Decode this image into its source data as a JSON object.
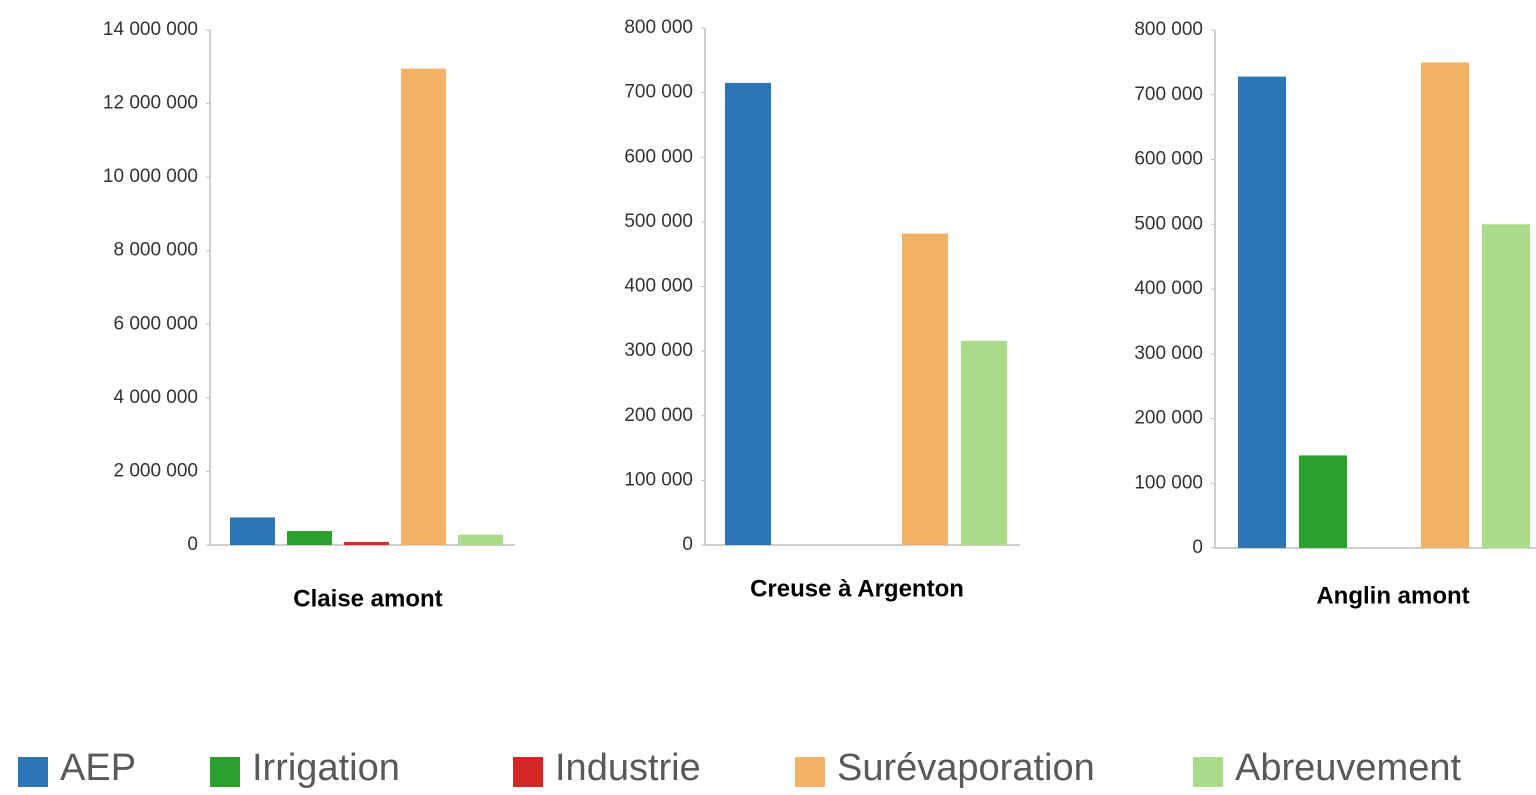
{
  "chart_data": [
    {
      "type": "bar",
      "title": "Claise amont",
      "values": [
        750000,
        380000,
        80000,
        12950000,
        280000
      ],
      "ylim": [
        0,
        14000000
      ],
      "yticks": [
        0,
        {
          "value": 2000000,
          "label": "2 000 000"
        },
        {
          "value": 4000000,
          "label": "4 000 000"
        },
        {
          "value": 6000000,
          "label": "6 000 000"
        },
        {
          "value": 8000000,
          "label": "8 000 000"
        },
        {
          "value": 10000000,
          "label": "10 000 000"
        },
        {
          "value": 12000000,
          "label": "12 000 000"
        },
        {
          "value": 14000000,
          "label": "14 000 000"
        }
      ]
    },
    {
      "type": "bar",
      "title": "Creuse à Argenton",
      "values": [
        715000,
        null,
        null,
        482000,
        316000
      ],
      "ylim": [
        0,
        800000
      ],
      "yticks": [
        0,
        {
          "value": 100000,
          "label": "100 000"
        },
        {
          "value": 200000,
          "label": "200 000"
        },
        {
          "value": 300000,
          "label": "300 000"
        },
        {
          "value": 400000,
          "label": "400 000"
        },
        {
          "value": 500000,
          "label": "500 000"
        },
        {
          "value": 600000,
          "label": "600 000"
        },
        {
          "value": 700000,
          "label": "700 000"
        },
        {
          "value": 800000,
          "label": "800 000"
        }
      ]
    },
    {
      "type": "bar",
      "title": "Anglin amont",
      "values": [
        728000,
        143000,
        null,
        750000,
        500000
      ],
      "ylim": [
        0,
        800000
      ],
      "yticks": [
        0,
        {
          "value": 100000,
          "label": "100 000"
        },
        {
          "value": 200000,
          "label": "200 000"
        },
        {
          "value": 300000,
          "label": "300 000"
        },
        {
          "value": 400000,
          "label": "400 000"
        },
        {
          "value": 500000,
          "label": "500 000"
        },
        {
          "value": 600000,
          "label": "600 000"
        },
        {
          "value": 700000,
          "label": "700 000"
        },
        {
          "value": 800000,
          "label": "800 000"
        }
      ]
    }
  ],
  "legend": {
    "categories": [
      "AEP",
      "Irrigation",
      "Industrie",
      "Surévaporation",
      "Abreuvement"
    ],
    "colors": [
      "#2e75b6",
      "#2ca02c",
      "#d62728",
      "#f4b266",
      "#a9dc8b"
    ]
  }
}
